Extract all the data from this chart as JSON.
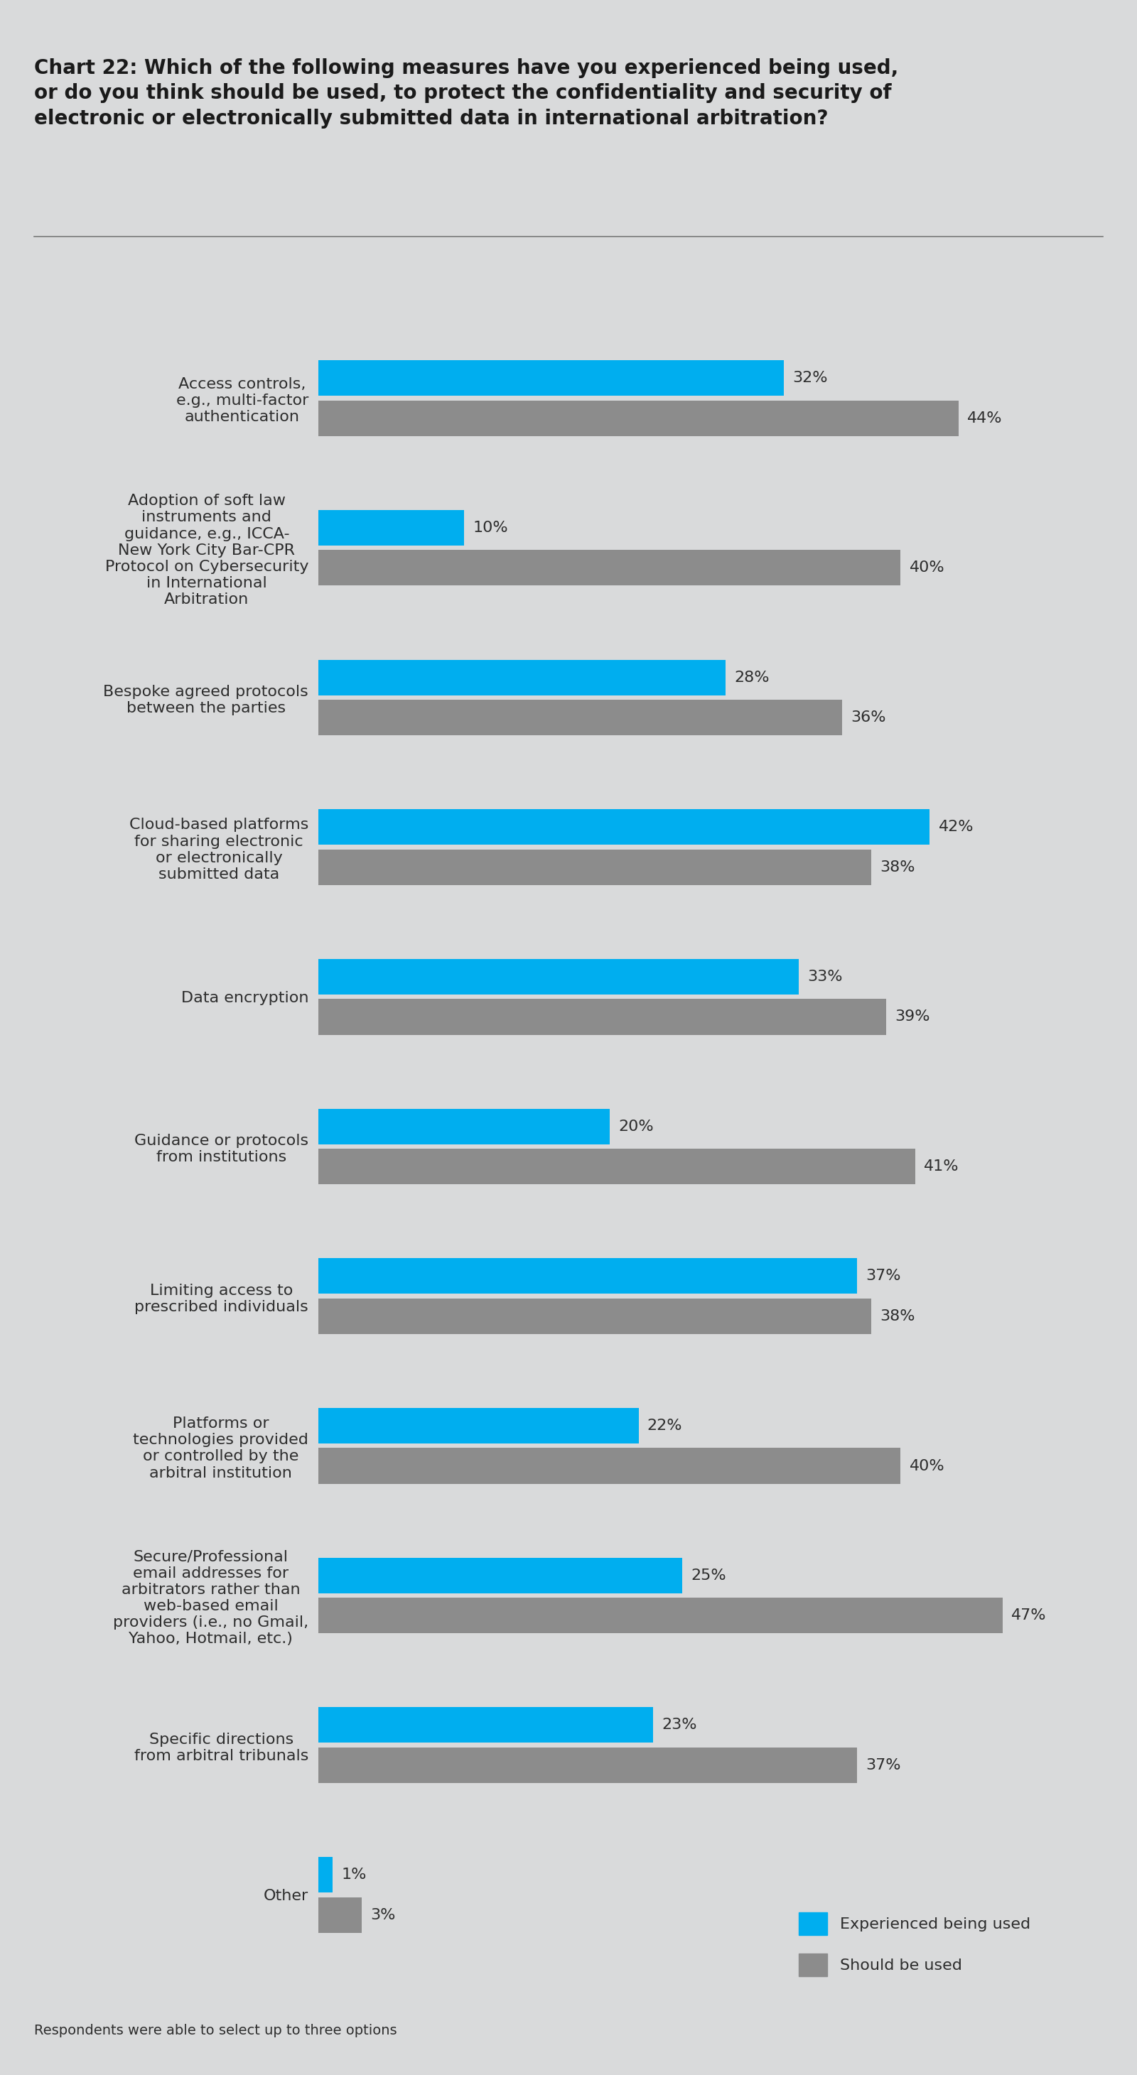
{
  "title_line1": "Chart 22: Which of the following measures have you experienced being used,",
  "title_line2": "or do you think should be used, to protect the confidentiality and security of",
  "title_line3": "electronic or electronically submitted data in international arbitration?",
  "footnote": "Respondents were able to select up to three options",
  "categories": [
    "Access controls,\ne.g., multi-factor\nauthentication",
    "Adoption of soft law\ninstruments and\nguidance, e.g., ICCA-\nNew York City Bar-CPR\nProtocol on Cybersecurity\nin International\nArbitration",
    "Bespoke agreed protocols\nbetween the parties",
    "Cloud-based platforms\nfor sharing electronic\nor electronically\nsubmitted data",
    "Data encryption",
    "Guidance or protocols\nfrom institutions",
    "Limiting access to\nprescribed individuals",
    "Platforms or\ntechnologies provided\nor controlled by the\narbitral institution",
    "Secure/Professional\nemail addresses for\narbitrators rather than\nweb-based email\nproviders (i.e., no Gmail,\nYahoo, Hotmail, etc.)",
    "Specific directions\nfrom arbitral tribunals",
    "Other"
  ],
  "experienced": [
    32,
    10,
    28,
    42,
    33,
    20,
    37,
    22,
    25,
    23,
    1
  ],
  "should_be": [
    44,
    40,
    36,
    38,
    39,
    41,
    38,
    40,
    47,
    37,
    3
  ],
  "color_experienced": "#00AEEF",
  "color_should": "#8C8C8C",
  "background_color": "#D9DADB",
  "title_fontsize": 20,
  "label_fontsize": 16,
  "bar_label_fontsize": 16,
  "legend_fontsize": 16,
  "footnote_fontsize": 14
}
